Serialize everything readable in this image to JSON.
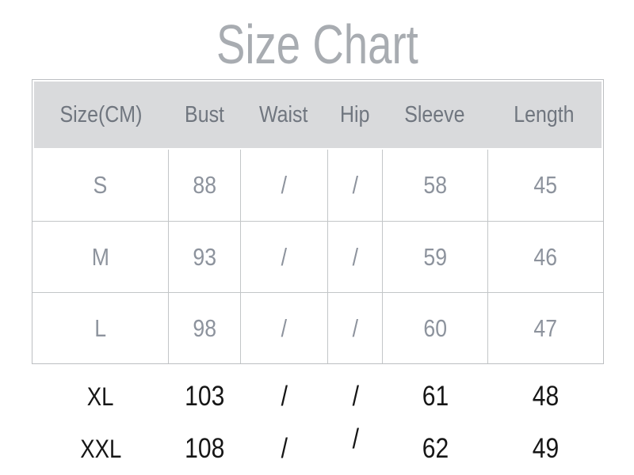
{
  "title": "Size Chart",
  "na_symbol": "/",
  "colors": {
    "background": "#ffffff",
    "title_text": "#a8acb1",
    "header_background": "#d9dadc",
    "header_text": "#70767f",
    "body_text": "#8d939d",
    "emphasis_text": "#161616",
    "table_border": "#c3c6c8"
  },
  "chart_data": {
    "type": "table",
    "title": "Size Chart",
    "units": "CM",
    "columns": [
      "Size(CM)",
      "Bust",
      "Waist",
      "Hip",
      "Sleeve",
      "Length"
    ],
    "rows": [
      [
        "S",
        "88",
        "/",
        "/",
        "58",
        "45"
      ],
      [
        "M",
        "93",
        "/",
        "/",
        "59",
        "46"
      ],
      [
        "L",
        "98",
        "/",
        "/",
        "60",
        "47"
      ],
      [
        "XL",
        "103",
        "/",
        "/",
        "61",
        "48"
      ],
      [
        "XXL",
        "108",
        "/",
        "/",
        "62",
        "49"
      ]
    ]
  }
}
